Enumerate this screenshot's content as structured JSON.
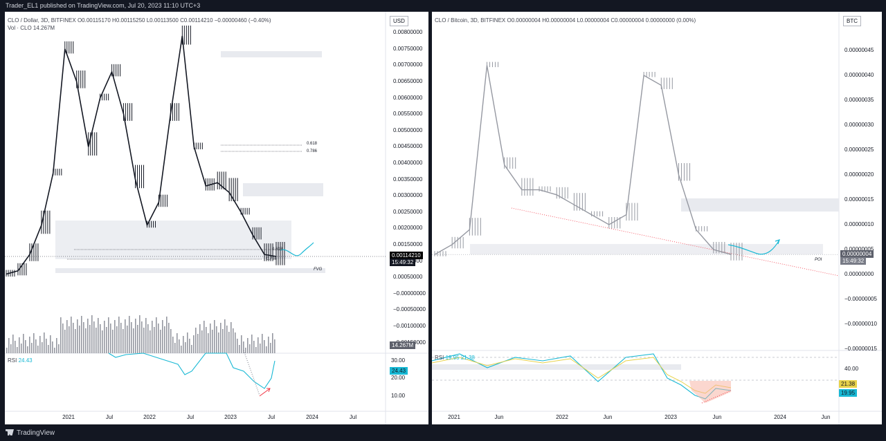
{
  "publish_line": "Trader_EL1 published on TradingView.com, Jul 20, 2023 11:10 UTC+3",
  "footer_logo": "TradingView",
  "colors": {
    "accent_cyan": "#17b8d4",
    "rsi_yellow": "#e8d24a",
    "red_line": "#f23645",
    "candle": "#131722",
    "volume": "#9598a1",
    "zone": "#e0e3eb"
  },
  "left": {
    "title": "CLO / Dollar, 3D, BITFINEX",
    "ohlc": "O0.00115170 H0.00115250 L0.00113500 C0.00114210 −0.00000460 (−0.40%)",
    "vol_label": "Vol · CLO",
    "vol_value": "14.267M",
    "unit": "USD",
    "price_ticks": [
      "0.00800000",
      "0.00750000",
      "0.00700000",
      "0.00650000",
      "0.00600000",
      "0.00550000",
      "0.00500000",
      "0.00450000",
      "0.00400000",
      "0.00350000",
      "0.00300000",
      "0.00250000",
      "0.00200000",
      "0.00150000",
      "0.00100000",
      "0.00050000",
      "−0.00000000",
      "−0.00050000",
      "−0.00100000",
      "−0.00150000"
    ],
    "current_price": "0.00114210",
    "countdown": "15:49:32",
    "vol_badge": "14.267M",
    "fib_618": "0.618",
    "fib_786": "0.786",
    "fib_786_low": "0.786",
    "fib_low_618": "0.618",
    "fvg": "FVG",
    "rsi_label": "RSI",
    "rsi_value": "24.43",
    "rsi_ticks": [
      "30.00",
      "20.00",
      "10.00"
    ],
    "rsi_badge": "24.43",
    "date_ticks": [
      "2021",
      "Jul",
      "2022",
      "Jul",
      "2023",
      "Jul",
      "2024",
      "Jul"
    ]
  },
  "right": {
    "title": "CLO / Bitcoin, 3D, BITFINEX",
    "ohlc": "O0.00000004 H0.00000004 L0.00000004 C0.00000004 0.00000000 (0.00%)",
    "unit": "BTC",
    "price_ticks": [
      "0.00000045",
      "0.00000040",
      "0.00000035",
      "0.00000030",
      "0.00000025",
      "0.00000020",
      "0.00000015",
      "0.00000010",
      "0.00000005",
      "0.00000000",
      "−0.00000005",
      "−0.00000010",
      "−0.00000015"
    ],
    "current_price": "0.00000004",
    "countdown": "15:49:32",
    "poi": "POI",
    "rsi_label": "RSI",
    "rsi_vals": "19.95 21.38",
    "rsi_tick": "40.00",
    "rsi_badge_yellow": "21.38",
    "rsi_badge_cyan": "19.95",
    "date_ticks": [
      "2021",
      "Jun",
      "2022",
      "Jun",
      "2023",
      "Jun",
      "2024",
      "Jun"
    ]
  },
  "chart_data": [
    {
      "type": "candlestick",
      "title": "CLO / Dollar, 3D, BITFINEX",
      "unit": "USD",
      "ylim": [
        -0.0015,
        0.008
      ],
      "approx_close_series": {
        "x": [
          "2020-11",
          "2020-12",
          "2021-01",
          "2021-02",
          "2021-03",
          "2021-05",
          "2021-07",
          "2021-09",
          "2021-11",
          "2022-01",
          "2022-03",
          "2022-05",
          "2022-07",
          "2022-09",
          "2022-10",
          "2022-11",
          "2022-12",
          "2023-01",
          "2023-02",
          "2023-03",
          "2023-04",
          "2023-05",
          "2023-06",
          "2023-07"
        ],
        "close": [
          0.0006,
          0.0007,
          0.0012,
          0.0021,
          0.0037,
          0.0075,
          0.0065,
          0.0045,
          0.006,
          0.0068,
          0.0055,
          0.0035,
          0.0021,
          0.0028,
          0.0055,
          0.0079,
          0.0045,
          0.0033,
          0.0034,
          0.0031,
          0.0025,
          0.0018,
          0.0012,
          0.00114
        ]
      },
      "rsi": {
        "last": 24.43
      }
    },
    {
      "type": "candlestick",
      "title": "CLO / Bitcoin, 3D, BITFINEX",
      "unit": "BTC",
      "ylim": [
        -1.5e-07,
        4.8e-07
      ],
      "approx_close_series": {
        "x": [
          "2020-11",
          "2021-01",
          "2021-03",
          "2021-05",
          "2021-06",
          "2021-08",
          "2021-10",
          "2021-12",
          "2022-02",
          "2022-04",
          "2022-06",
          "2022-08",
          "2022-10",
          "2022-11",
          "2023-01",
          "2023-03",
          "2023-05",
          "2023-07"
        ],
        "close": [
          4e-08,
          6e-08,
          9e-08,
          4.2e-07,
          2.2e-07,
          1.7e-07,
          1.7e-07,
          1.6e-07,
          1.4e-07,
          1.2e-07,
          1e-07,
          1.2e-07,
          4e-07,
          3.8e-07,
          2e-07,
          9e-08,
          5e-08,
          4e-08
        ]
      },
      "rsi": {
        "values": [
          19.95,
          21.38
        ]
      }
    }
  ]
}
